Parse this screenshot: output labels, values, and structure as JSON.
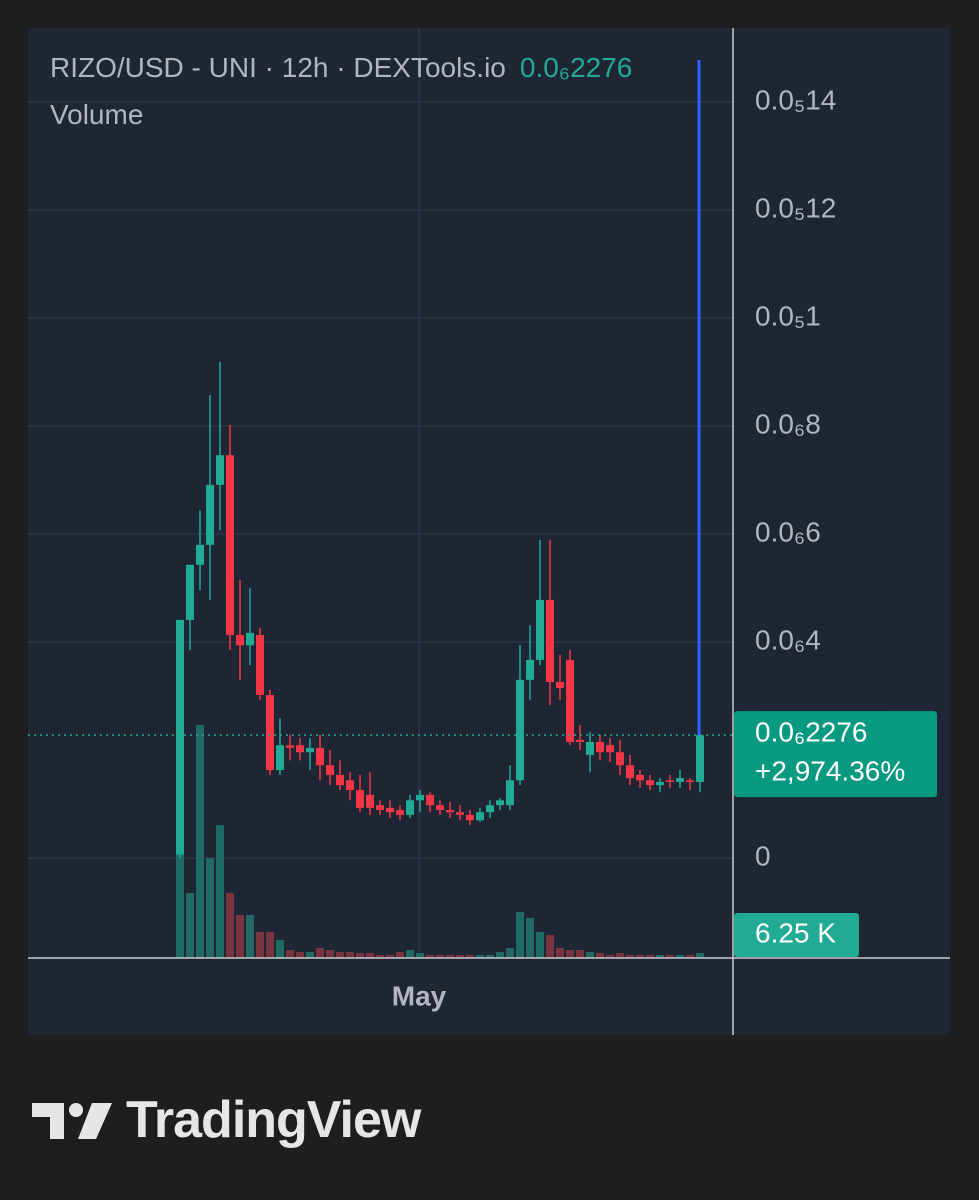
{
  "chart_data": {
    "type": "candlestick",
    "title": "RIZO/USD - UNI · 12h · DEXTools.io",
    "last_price_label": "0.0₆2276",
    "change_label": "+2,974.36%",
    "volume_title": "Volume",
    "last_volume_label": "6.25 K",
    "up_color": "#22ab94",
    "down_color": "#f23645",
    "up_volume_color": "#1f6b63",
    "down_volume_color": "#7a3440",
    "grid": true,
    "categories": [
      null,
      null,
      null,
      null,
      null,
      null,
      null,
      null,
      null,
      null,
      null,
      null,
      null,
      null,
      null,
      null,
      null,
      null,
      null,
      null,
      null,
      null,
      null,
      null,
      "May",
      null,
      null,
      null,
      null,
      null,
      null,
      null,
      null,
      null,
      null,
      null,
      null,
      null,
      null,
      null,
      null,
      null,
      null,
      null,
      null,
      null,
      null,
      null,
      null,
      null,
      null,
      null,
      null
    ],
    "open": [
      6e-09,
      4.41e-07,
      5.43e-07,
      5.8e-07,
      6.91e-07,
      7.46e-07,
      4.13e-07,
      3.94e-07,
      4.13e-07,
      3.02e-07,
      1.63e-07,
      2.09e-07,
      2.09e-07,
      1.96e-07,
      2.04e-07,
      1.72e-07,
      1.54e-07,
      1.44e-07,
      1.26e-07,
      1.17e-07,
      9.8e-08,
      9.3e-08,
      8.9e-08,
      8e-08,
      1.07e-07,
      1.17e-07,
      9.8e-08,
      8.9e-08,
      8.5e-08,
      8e-08,
      7e-08,
      8.5e-08,
      9.8e-08,
      9.8e-08,
      1.44e-07,
      3.3e-07,
      3.67e-07,
      4.78e-07,
      3.26e-07,
      3.67e-07,
      2.19e-07,
      1.91e-07,
      2.15e-07,
      2.09e-07,
      1.96e-07,
      1.72e-07,
      1.54e-07,
      1.44e-07,
      1.35e-07,
      1.44e-07,
      1.41e-07,
      1.44e-07,
      1.41e-07
    ],
    "high": [
      4.41e-07,
      5.43e-07,
      6.44e-07,
      8.57e-07,
      9.19e-07,
      8.02e-07,
      5.15e-07,
      5e-07,
      4.26e-07,
      3.11e-07,
      2.59e-07,
      2.28e-07,
      2.22e-07,
      2.22e-07,
      2.28e-07,
      2e-07,
      1.81e-07,
      1.59e-07,
      1.54e-07,
      1.59e-07,
      1.07e-07,
      1.07e-07,
      9.8e-08,
      1.17e-07,
      1.26e-07,
      1.22e-07,
      1.07e-07,
      1.04e-07,
      9.8e-08,
      8.9e-08,
      9.3e-08,
      1.07e-07,
      1.11e-07,
      1.72e-07,
      3.94e-07,
      4.31e-07,
      5.89e-07,
      5.89e-07,
      3.76e-07,
      3.85e-07,
      2.46e-07,
      2.33e-07,
      2.28e-07,
      2.22e-07,
      2.19e-07,
      1.91e-07,
      1.63e-07,
      1.54e-07,
      1.48e-07,
      1.54e-07,
      1.63e-07,
      1.48e-07,
      2.28e-07
    ],
    "low": [
      0,
      3.85e-07,
      4.96e-07,
      4.78e-07,
      6.07e-07,
      3.85e-07,
      3.3e-07,
      3.57e-07,
      2.93e-07,
      1.54e-07,
      1.54e-07,
      1.81e-07,
      1.81e-07,
      1.63e-07,
      1.44e-07,
      1.35e-07,
      1.26e-07,
      1.07e-07,
      8.5e-08,
      8e-08,
      8e-08,
      7.4e-08,
      7e-08,
      7.4e-08,
      8.5e-08,
      8.5e-08,
      8e-08,
      7.4e-08,
      7e-08,
      6.1e-08,
      6.7e-08,
      7.4e-08,
      8.9e-08,
      8.9e-08,
      1.35e-07,
      2.93e-07,
      3.57e-07,
      2.83e-07,
      2.93e-07,
      2.09e-07,
      2e-07,
      1.59e-07,
      1.81e-07,
      1.78e-07,
      1.54e-07,
      1.35e-07,
      1.3e-07,
      1.26e-07,
      1.22e-07,
      1.3e-07,
      1.3e-07,
      1.26e-07,
      1.22e-07
    ],
    "close": [
      4.41e-07,
      5.43e-07,
      5.8e-07,
      6.91e-07,
      7.46e-07,
      4.13e-07,
      3.94e-07,
      4.17e-07,
      3.02e-07,
      1.63e-07,
      2.09e-07,
      2.04e-07,
      1.96e-07,
      2.04e-07,
      1.72e-07,
      1.54e-07,
      1.35e-07,
      1.26e-07,
      9.3e-08,
      9.3e-08,
      8.9e-08,
      8.5e-08,
      8e-08,
      1.07e-07,
      1.17e-07,
      9.8e-08,
      8.9e-08,
      8.5e-08,
      8e-08,
      7e-08,
      8.5e-08,
      9.8e-08,
      1.07e-07,
      1.44e-07,
      3.3e-07,
      3.67e-07,
      4.78e-07,
      3.26e-07,
      3.15e-07,
      2.15e-07,
      2.15e-07,
      2.15e-07,
      1.96e-07,
      1.96e-07,
      1.72e-07,
      1.48e-07,
      1.44e-07,
      1.35e-07,
      1.41e-07,
      1.41e-07,
      1.48e-07,
      1.41e-07,
      2.276e-07
    ],
    "volume": [
      128.75,
      81.25,
      291.25,
      125,
      166.25,
      81.25,
      53.75,
      53.75,
      32.5,
      32.5,
      22.5,
      10,
      7.5,
      7.5,
      12.5,
      10,
      7.5,
      7.5,
      6.25,
      6.25,
      3.75,
      3.75,
      7.5,
      10,
      6.25,
      3.75,
      3.75,
      3.75,
      3.75,
      3.75,
      3.75,
      3.75,
      7.5,
      12.5,
      57.5,
      50,
      32.5,
      28.75,
      12.5,
      10,
      10,
      7.5,
      6.25,
      3.75,
      6.25,
      3.75,
      3.75,
      3.75,
      3.75,
      3.75,
      3.75,
      3.75,
      6.25
    ],
    "ylim": [
      -1.85e-07,
      1.537e-06
    ],
    "volume_ylim": [
      0,
      1162.5
    ],
    "yticks": [
      0,
      {
        "value": 4e-07,
        "label": "0.0₆4"
      },
      {
        "value": 6e-07,
        "label": "0.0₆6"
      },
      {
        "value": 8e-07,
        "label": "0.0₆8"
      },
      {
        "value": 1e-06,
        "label": "0.0₅1"
      },
      {
        "value": 1.2e-06,
        "label": "0.0₅12"
      },
      {
        "value": 1.4e-06,
        "label": "0.0₅14"
      }
    ]
  },
  "brand": "TradingView"
}
